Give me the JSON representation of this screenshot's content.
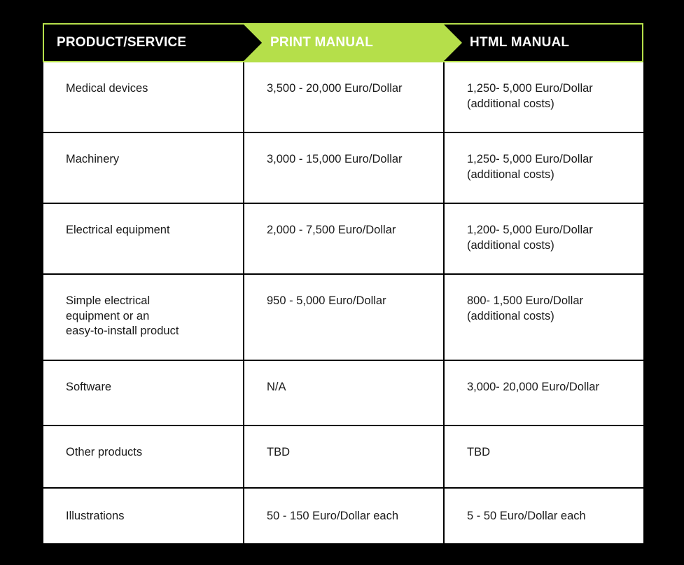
{
  "header": {
    "col1": "PRODUCT/SERVICE",
    "col2": "PRINT MANUAL",
    "col3": "HTML MANUAL"
  },
  "colors": {
    "accent": "#b5df4a",
    "background": "#000000",
    "cell_background": "#ffffff"
  },
  "rows": [
    {
      "product": [
        "Medical devices"
      ],
      "print": [
        "3,500 - 20,000 Euro/Dollar"
      ],
      "html": [
        "1,250- 5,000 Euro/Dollar",
        "(additional costs)"
      ]
    },
    {
      "product": [
        "Machinery"
      ],
      "print": [
        "3,000 - 15,000 Euro/Dollar"
      ],
      "html": [
        "1,250- 5,000 Euro/Dollar",
        "(additional costs)"
      ]
    },
    {
      "product": [
        "Electrical equipment"
      ],
      "print": [
        "2,000 - 7,500 Euro/Dollar"
      ],
      "html": [
        "1,200- 5,000 Euro/Dollar",
        "(additional costs)"
      ]
    },
    {
      "product": [
        "Simple electrical",
        "equipment or an",
        "easy-to-install product"
      ],
      "print": [
        "950 - 5,000 Euro/Dollar"
      ],
      "html": [
        "800- 1,500 Euro/Dollar",
        "(additional costs)"
      ]
    },
    {
      "product": [
        "Software"
      ],
      "print": [
        "N/A"
      ],
      "html": [
        "3,000- 20,000 Euro/Dollar"
      ]
    },
    {
      "product": [
        "Other products"
      ],
      "print": [
        "TBD"
      ],
      "html": [
        "TBD"
      ]
    },
    {
      "product": [
        "Illustrations"
      ],
      "print": [
        "50 - 150 Euro/Dollar each"
      ],
      "html": [
        "5 - 50 Euro/Dollar each"
      ]
    }
  ]
}
